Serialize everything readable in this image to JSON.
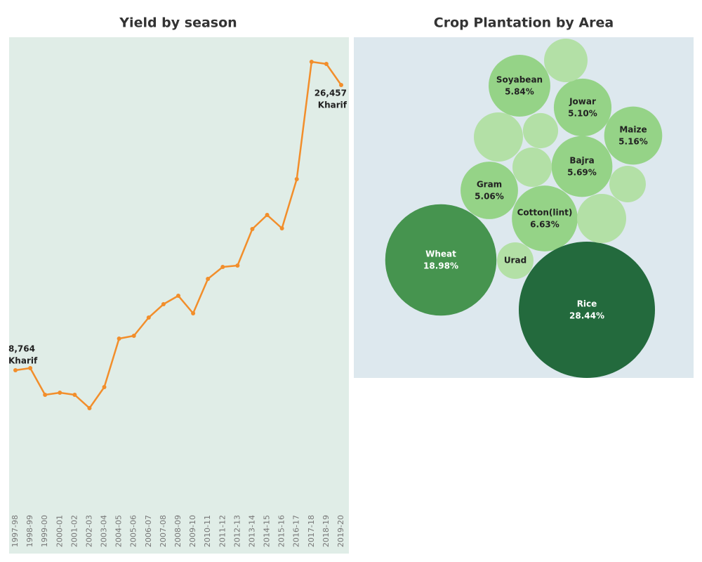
{
  "chart_data": [
    {
      "type": "line",
      "title": "Yield by season",
      "categories": [
        "1997-98",
        "1998-99",
        "1999-00",
        "2000-01",
        "2001-02",
        "2002-03",
        "2003-04",
        "2004-05",
        "2005-06",
        "2006-07",
        "2007-08",
        "2008-09",
        "2009-10",
        "2010-11",
        "2011-12",
        "2012-13",
        "2013-14",
        "2014-15",
        "2015-16",
        "2016-17",
        "2017-18",
        "2018-19",
        "2019-20"
      ],
      "series": [
        {
          "name": "Kharif",
          "color": "#f28e2b",
          "values": [
            8764,
            8895,
            7239,
            7370,
            7239,
            6411,
            7718,
            10725,
            10899,
            12032,
            12860,
            13383,
            12294,
            14429,
            15170,
            15257,
            17523,
            18395,
            17567,
            20617,
            27895,
            27765,
            26457
          ],
          "value_labels": [
            "8,764",
            null,
            null,
            null,
            null,
            null,
            null,
            null,
            null,
            null,
            null,
            null,
            null,
            null,
            null,
            null,
            null,
            null,
            null,
            null,
            null,
            null,
            "26,457"
          ]
        }
      ]
    },
    {
      "type": "packed-bubble",
      "title": "Crop Plantation by Area",
      "categories": [
        "Soyabean",
        "Jowar",
        "Maize",
        "Bajra",
        "Gram",
        "Cotton(lint)",
        "Wheat",
        "Urad",
        "Rice",
        null,
        null,
        null,
        null,
        null,
        null
      ],
      "values": [
        5.84,
        5.1,
        5.16,
        5.69,
        5.06,
        6.63,
        18.98,
        2.04,
        28.44,
        2.9,
        3.7,
        1.9,
        2.37,
        2.04,
        3.7
      ],
      "value_labels": [
        "5.84%",
        "5.10%",
        "5.16%",
        "5.69%",
        "5.06%",
        "6.63%",
        "18.98%",
        null,
        "28.44%",
        null,
        null,
        null,
        null,
        null,
        null
      ],
      "colors": [
        "#95d387",
        "#95d387",
        "#95d387",
        "#95d387",
        "#95d387",
        "#95d387",
        "#46944f",
        "#b3e0a6",
        "#236a3d",
        "#b3e0a6",
        "#b3e0a6",
        "#b3e0a6",
        "#b3e0a6",
        "#b3e0a6",
        "#b3e0a6"
      ]
    }
  ]
}
